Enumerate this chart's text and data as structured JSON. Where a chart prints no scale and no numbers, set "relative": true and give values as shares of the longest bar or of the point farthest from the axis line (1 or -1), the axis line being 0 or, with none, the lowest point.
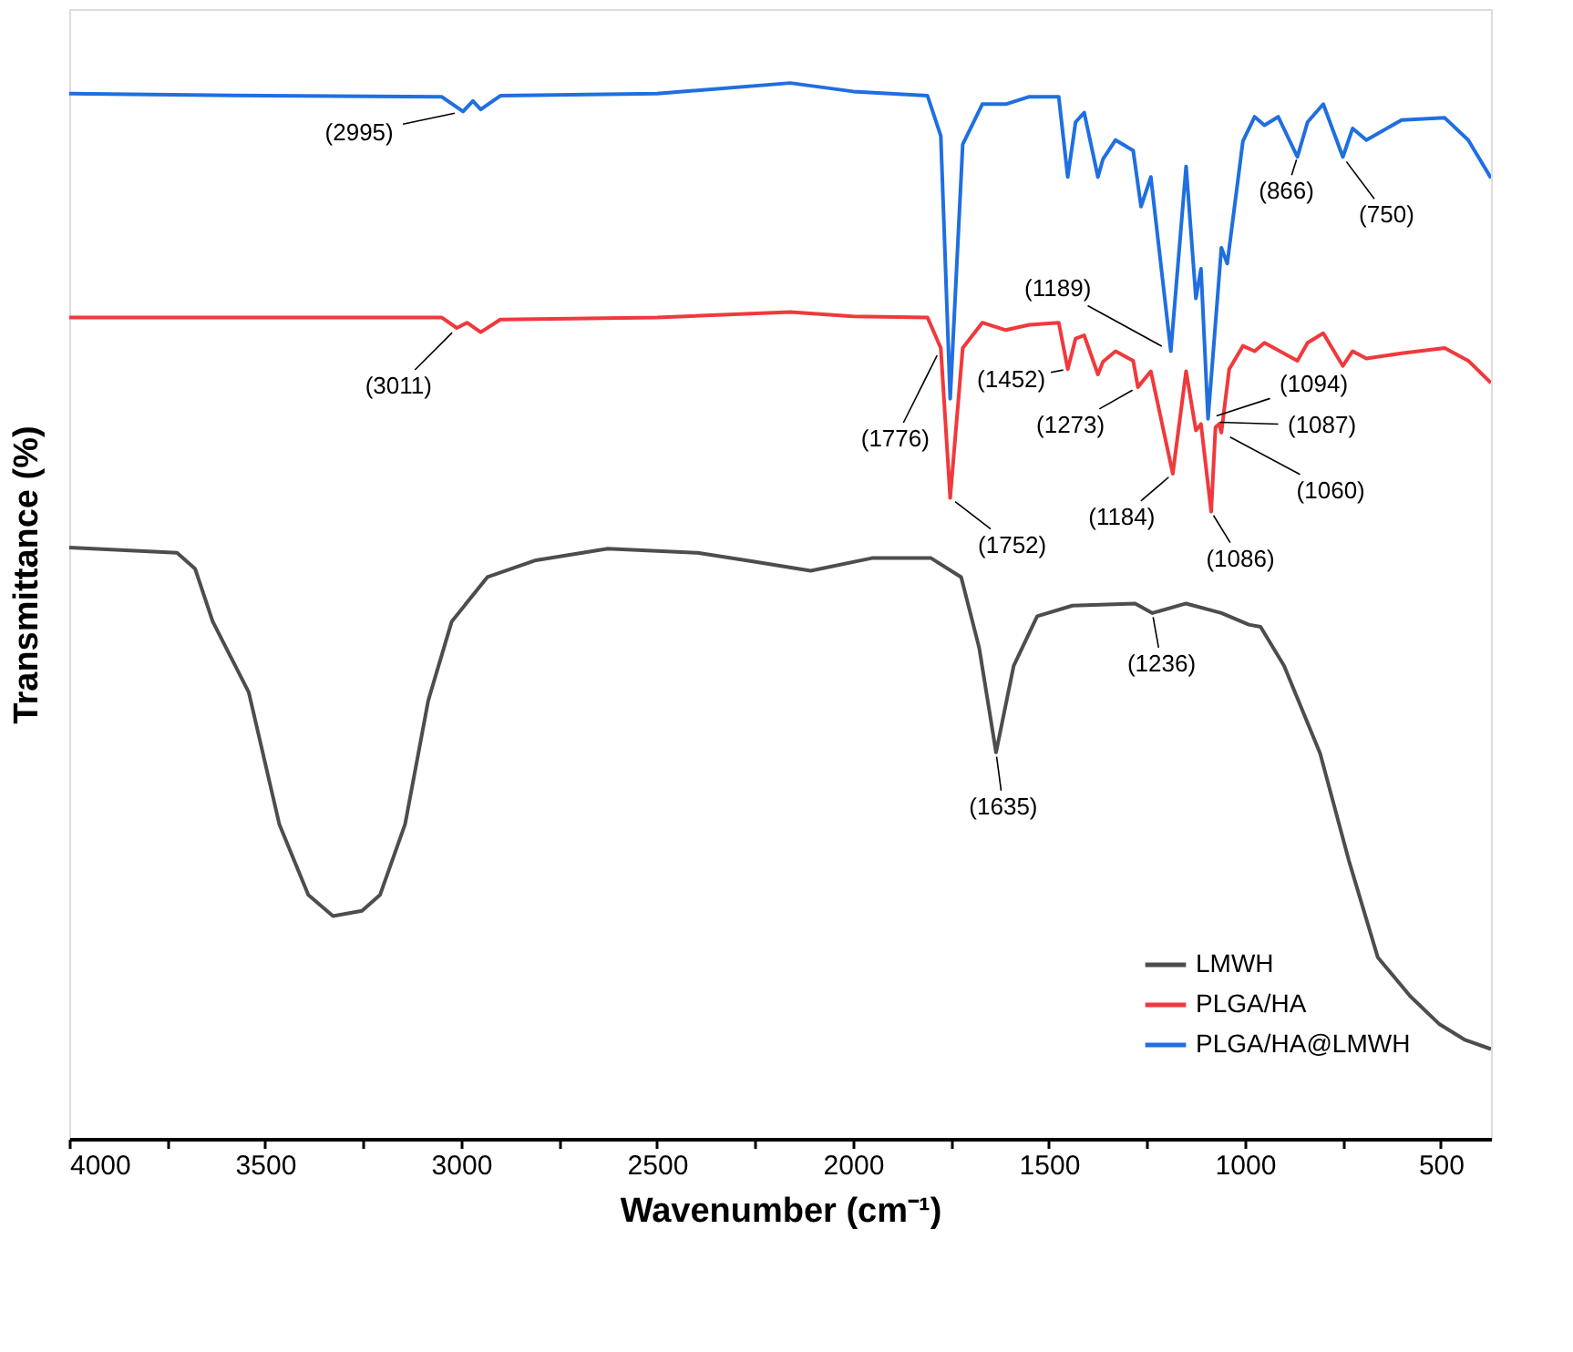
{
  "chart_data": {
    "type": "line",
    "relative": true,
    "xlabel": "Wavenumber (cm⁻¹)",
    "ylabel": "Transmittance (%)",
    "xlim": [
      4000,
      372
    ],
    "xticks": [
      4000,
      {
        "value": 3750,
        "label": null
      },
      3500,
      {
        "value": 3250,
        "label": null
      },
      3000,
      {
        "value": 2750,
        "label": null
      },
      2500,
      {
        "value": 2250,
        "label": null
      },
      2000,
      {
        "value": 1750,
        "label": null
      },
      1500,
      {
        "value": 1250,
        "label": null
      },
      1000,
      {
        "value": 750,
        "label": null
      },
      500
    ],
    "grid": false,
    "legend": "bottom right",
    "marker": "none",
    "line_style": "solid",
    "series": [
      {
        "name": "LMWH",
        "color": "#4d4d4d",
        "x": [
          4000,
          3725,
          3679,
          3634,
          3542,
          3464,
          3390,
          3327,
          3253,
          3207,
          3143,
          3084,
          3024,
          2933,
          2809,
          2626,
          2397,
          2259,
          2108,
          1952,
          1801,
          1724,
          1678,
          1635,
          1590,
          1530,
          1440,
          1280,
          1236,
          1150,
          1060,
          990,
          960,
          900,
          808,
          735,
          661,
          578,
          505,
          440,
          372
        ],
        "values": [
          0.56,
          0.555,
          0.54,
          0.49,
          0.423,
          0.298,
          0.231,
          0.211,
          0.216,
          0.231,
          0.298,
          0.415,
          0.49,
          0.532,
          0.548,
          0.559,
          0.555,
          0.547,
          0.538,
          0.55,
          0.55,
          0.532,
          0.465,
          0.366,
          0.448,
          0.495,
          0.505,
          0.507,
          0.498,
          0.507,
          0.498,
          0.487,
          0.485,
          0.448,
          0.365,
          0.264,
          0.172,
          0.135,
          0.109,
          0.094,
          0.085
        ]
      },
      {
        "name": "PLGA/HA",
        "color": "#f0393c",
        "x": [
          4000,
          3050,
          3011,
          2985,
          2950,
          2900,
          2500,
          2160,
          2000,
          1810,
          1776,
          1752,
          1720,
          1670,
          1610,
          1550,
          1475,
          1452,
          1432,
          1410,
          1375,
          1362,
          1330,
          1285,
          1273,
          1240,
          1184,
          1150,
          1125,
          1112,
          1086,
          1075,
          1066,
          1060,
          1040,
          1005,
          975,
          950,
          866,
          840,
          800,
          750,
          725,
          690,
          600,
          490,
          430,
          372
        ],
        "values": [
          0.778,
          0.778,
          0.768,
          0.773,
          0.764,
          0.776,
          0.778,
          0.783,
          0.779,
          0.778,
          0.749,
          0.607,
          0.749,
          0.773,
          0.766,
          0.771,
          0.773,
          0.729,
          0.758,
          0.761,
          0.724,
          0.736,
          0.746,
          0.737,
          0.712,
          0.727,
          0.63,
          0.727,
          0.671,
          0.677,
          0.594,
          0.674,
          0.677,
          0.669,
          0.729,
          0.751,
          0.746,
          0.754,
          0.737,
          0.754,
          0.763,
          0.732,
          0.746,
          0.739,
          0.744,
          0.749,
          0.737,
          0.716
        ]
      },
      {
        "name": "PLGA/HA@LMWH",
        "color": "#1f6fe0",
        "x": [
          4000,
          3500,
          3050,
          2995,
          2970,
          2950,
          2900,
          2500,
          2160,
          2000,
          1810,
          1776,
          1752,
          1720,
          1670,
          1610,
          1550,
          1475,
          1452,
          1432,
          1410,
          1375,
          1362,
          1330,
          1285,
          1265,
          1240,
          1189,
          1150,
          1125,
          1112,
          1094,
          1060,
          1045,
          1005,
          975,
          950,
          915,
          866,
          840,
          800,
          750,
          725,
          690,
          600,
          490,
          430,
          372
        ],
        "values": [
          0.99,
          0.988,
          0.987,
          0.973,
          0.983,
          0.975,
          0.988,
          0.99,
          1.0,
          0.992,
          0.988,
          0.95,
          0.701,
          0.942,
          0.98,
          0.98,
          0.987,
          0.987,
          0.911,
          0.963,
          0.972,
          0.911,
          0.928,
          0.946,
          0.936,
          0.883,
          0.911,
          0.746,
          0.921,
          0.796,
          0.824,
          0.682,
          0.844,
          0.829,
          0.945,
          0.968,
          0.96,
          0.968,
          0.93,
          0.963,
          0.98,
          0.93,
          0.957,
          0.946,
          0.965,
          0.967,
          0.946,
          0.91
        ]
      }
    ],
    "annotations": [
      {
        "text": "(2995)",
        "x": 2995,
        "y": 0.973
      },
      {
        "text": "(3011)",
        "x": 3011,
        "y": 0.768
      },
      {
        "text": "(1776)",
        "x": 1776,
        "y": 0.749
      },
      {
        "text": "(1752)",
        "x": 1752,
        "y": 0.607
      },
      {
        "text": "(1452)",
        "x": 1452,
        "y": 0.729
      },
      {
        "text": "(1273)",
        "x": 1273,
        "y": 0.712
      },
      {
        "text": "(1189)",
        "x": 1189,
        "y": 0.746
      },
      {
        "text": "(1184)",
        "x": 1184,
        "y": 0.63
      },
      {
        "text": "(1094)",
        "x": 1094,
        "y": 0.682
      },
      {
        "text": "(1087)",
        "x": 1087,
        "y": 0.679
      },
      {
        "text": "(1086)",
        "x": 1086,
        "y": 0.594
      },
      {
        "text": "(1060)",
        "x": 1060,
        "y": 0.669
      },
      {
        "text": "(866)",
        "x": 866,
        "y": 0.93
      },
      {
        "text": "(750)",
        "x": 750,
        "y": 0.93
      },
      {
        "text": "(1635)",
        "x": 1635,
        "y": 0.366
      },
      {
        "text": "(1236)",
        "x": 1236,
        "y": 0.498
      }
    ]
  }
}
